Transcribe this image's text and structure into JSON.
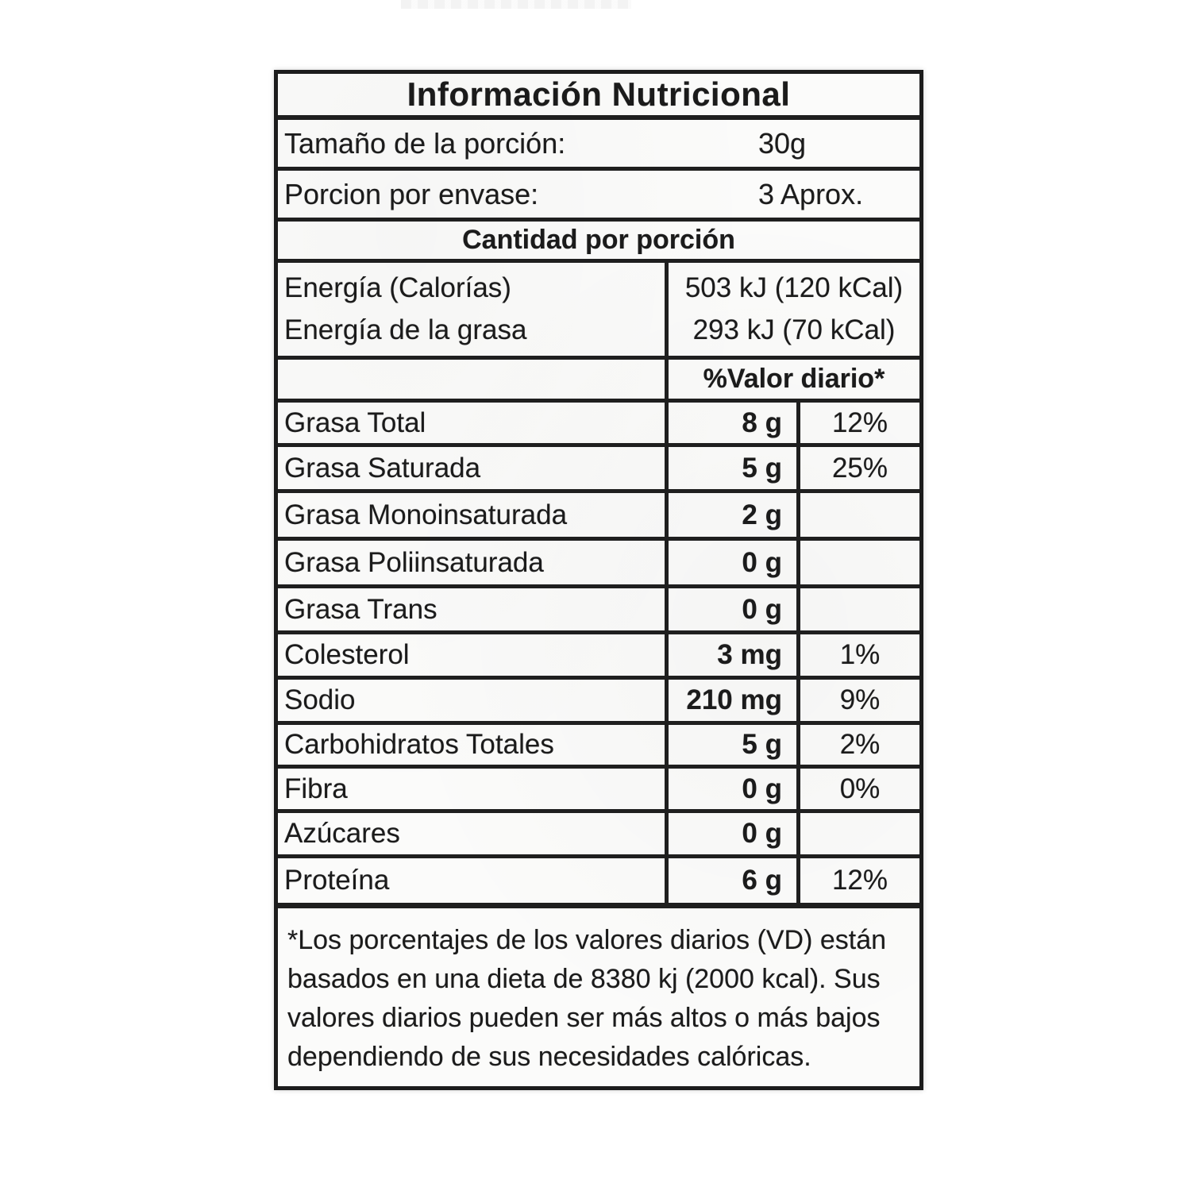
{
  "label": {
    "title": "Información Nutricional",
    "serving_size": {
      "label": "Tamaño de la porción:",
      "value": "30g"
    },
    "servings_per_container": {
      "label": "Porcion por envase:",
      "value": "3 Aprox."
    },
    "amount_per_serving": "Cantidad por porción",
    "energy_rows": [
      {
        "label": "Energía (Calorías)",
        "value": "503 kJ (120 kCal)"
      },
      {
        "label": "Energía de la grasa",
        "value": "293 kJ (70 kCal)"
      }
    ],
    "daily_value_header": "%Valor diario*",
    "nutrients": [
      {
        "name": "Grasa Total",
        "amount": "8 g",
        "dv": "12%"
      },
      {
        "name": "Grasa Saturada",
        "amount": "5 g",
        "dv": "25%"
      },
      {
        "name": "Grasa Monoinsaturada",
        "amount": "2 g",
        "dv": ""
      },
      {
        "name": "Grasa Poliinsaturada",
        "amount": "0 g",
        "dv": ""
      },
      {
        "name": "Grasa Trans",
        "amount": "0 g",
        "dv": ""
      },
      {
        "name": "Colesterol",
        "amount": "3 mg",
        "dv": "1%"
      },
      {
        "name": "Sodio",
        "amount": "210 mg",
        "dv": "9%"
      },
      {
        "name": "Carbohidratos Totales",
        "amount": "5 g",
        "dv": "2%"
      },
      {
        "name": "Fibra",
        "amount": "0 g",
        "dv": "0%"
      },
      {
        "name": "Azúcares",
        "amount": "0 g",
        "dv": ""
      },
      {
        "name": "Proteína",
        "amount": "6 g",
        "dv": "12%"
      }
    ],
    "footnote": "*Los porcentajes de los valores diarios (VD) están basados en una dieta de 8380 kj (2000 kcal). Sus valores diarios pueden ser más altos o más bajos dependiendo de sus necesidades calóricas.",
    "colors": {
      "ink": "#1c1c1c",
      "paper": "#fbfbfa"
    }
  }
}
